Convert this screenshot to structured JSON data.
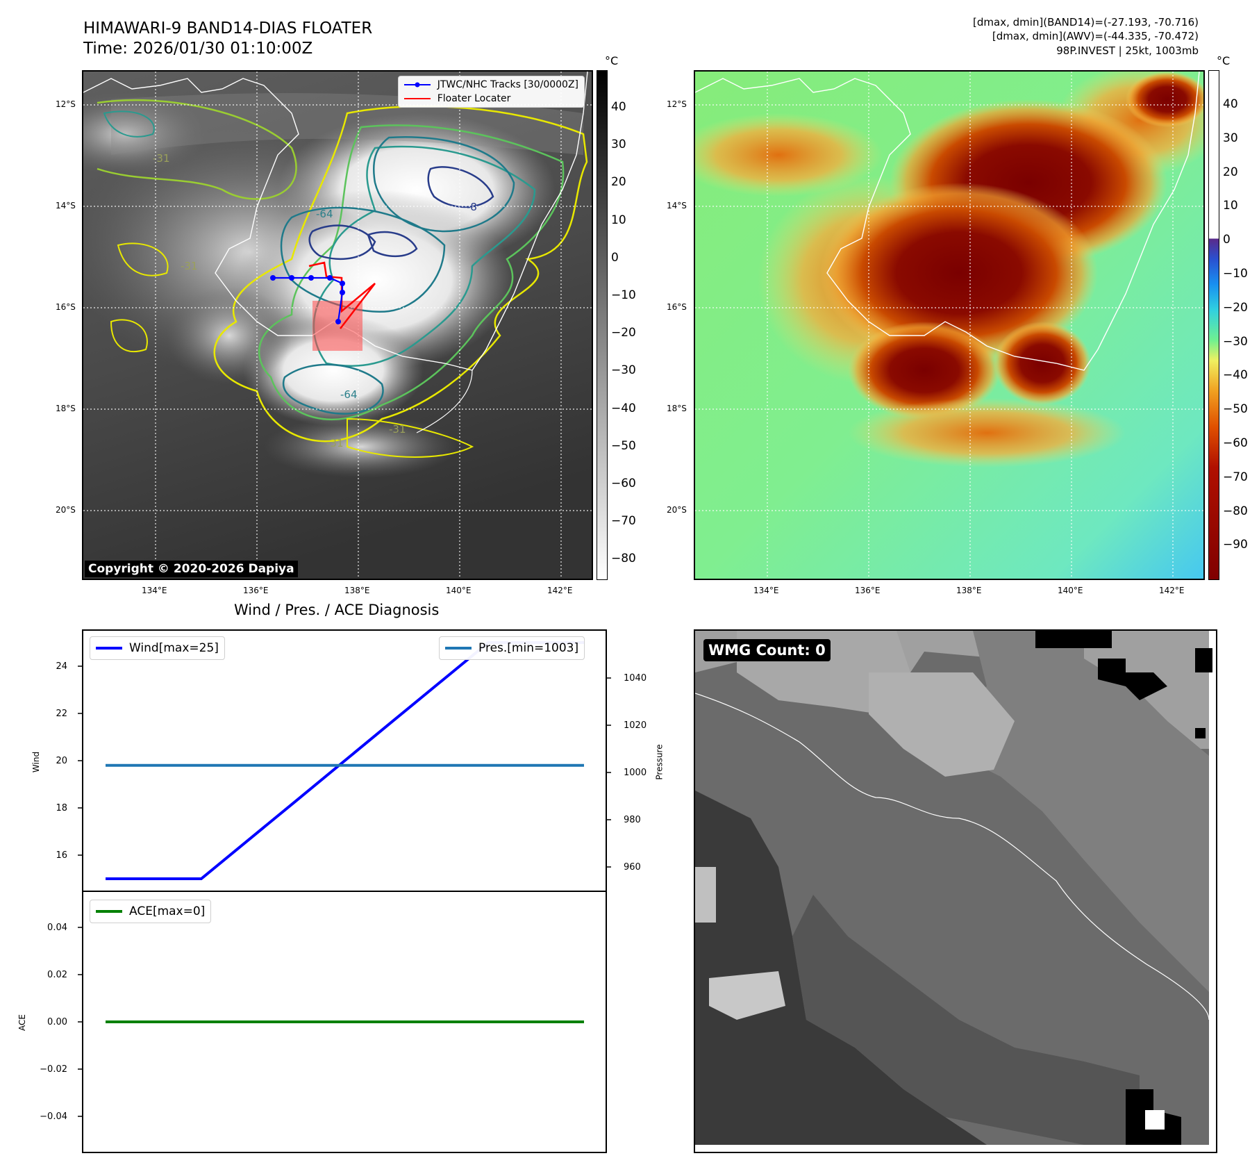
{
  "header": {
    "title_line1": "HIMAWARI-9 BAND14-DIAS FLOATER",
    "title_line2": "Time: 2026/01/30 01:10:00Z",
    "meta_line1": "[dmax, dmin](BAND14)=(-27.193, -70.716)",
    "meta_line2": "[dmax, dmin](AWV)=(-44.335, -70.472)",
    "meta_line3": "98P.INVEST | 25kt, 1003mb"
  },
  "maps": {
    "lat_labels": [
      "12°S",
      "14°S",
      "16°S",
      "18°S",
      "20°S"
    ],
    "lon_labels": [
      "134°E",
      "136°E",
      "138°E",
      "140°E",
      "142°E"
    ],
    "copyright": "Copyright © 2020-2026 Dapiya",
    "contour_labels": [
      "-64",
      "-64",
      "-31",
      "-31",
      "-31",
      "-31",
      "-8"
    ],
    "legend": {
      "track_label": "JTWC/NHC Tracks [30/0000Z]",
      "floater_label": "Floater Locater",
      "track_color": "#0000ff",
      "floater_color": "#ff0000"
    }
  },
  "colorbars": {
    "unit": "°C",
    "left_ticks": [
      "40",
      "30",
      "20",
      "10",
      "0",
      "−10",
      "−20",
      "−30",
      "−40",
      "−50",
      "−60",
      "−70",
      "−80"
    ],
    "right_ticks": [
      "40",
      "30",
      "20",
      "10",
      "0",
      "−10",
      "−20",
      "−30",
      "−40",
      "−50",
      "−60",
      "−70",
      "−80",
      "−90"
    ]
  },
  "diagnosis": {
    "title": "Wind / Pres. / ACE Diagnosis",
    "wind_ylabel": "Wind",
    "pressure_ylabel": "Pressure",
    "ace_ylabel": "ACE",
    "wind_legend": "Wind[max=25]",
    "pres_legend": "Pres.[min=1003]",
    "ace_legend": "ACE[max=0]",
    "wind_color": "#0000ff",
    "pres_color": "#1f77b4",
    "ace_color": "#008000"
  },
  "wmg": {
    "label": "WMG Count: 0"
  },
  "chart_data": [
    {
      "type": "line",
      "name": "wind_pressure",
      "x": [
        0,
        1,
        2,
        3,
        4,
        5
      ],
      "series": [
        {
          "name": "Wind[max=25]",
          "axis": "left",
          "values": [
            15,
            15,
            18.33,
            21.67,
            25,
            25
          ]
        },
        {
          "name": "Pres.[min=1003]",
          "axis": "right",
          "values": [
            1003,
            1003,
            1003,
            1003,
            1003,
            1003
          ]
        }
      ],
      "ylabel": "Wind",
      "ylabel_right": "Pressure",
      "ylim": [
        14.5,
        25.5
      ],
      "ylim_right": [
        950,
        1060
      ],
      "yticks": [
        "16",
        "18",
        "20",
        "22",
        "24"
      ],
      "yticks_right": [
        "960",
        "980",
        "1000",
        "1020",
        "1040"
      ],
      "legend": [
        "top-left",
        "top-right"
      ]
    },
    {
      "type": "line",
      "name": "ace",
      "x": [
        0,
        1,
        2,
        3,
        4,
        5
      ],
      "series": [
        {
          "name": "ACE[max=0]",
          "values": [
            0,
            0,
            0,
            0,
            0,
            0
          ]
        }
      ],
      "ylabel": "ACE",
      "ylim": [
        -0.055,
        0.055
      ],
      "yticks": [
        "0.04",
        "0.02",
        "0.00",
        "−0.02",
        "−0.04"
      ],
      "legend": "top-left"
    }
  ]
}
